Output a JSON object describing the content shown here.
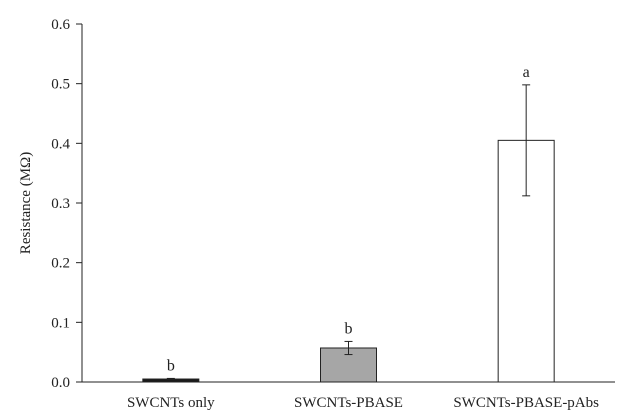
{
  "chart_data": {
    "type": "bar",
    "title": "",
    "xlabel": "",
    "ylabel": "Resistance (MΩ)",
    "ylim": [
      0,
      0.6
    ],
    "yticks": [
      "0.0",
      "0.1",
      "0.2",
      "0.3",
      "0.4",
      "0.5",
      "0.6"
    ],
    "grid": false,
    "legend": "none",
    "categories": [
      "SWCNTs only",
      "SWCNTs-PBASE",
      "SWCNTs-PBASE-pAbs"
    ],
    "values": [
      0.005,
      0.057,
      0.405
    ],
    "errors": [
      0.001,
      0.011,
      0.093
    ],
    "significance": [
      "b",
      "b",
      "a"
    ],
    "bar_colors": [
      "#1a1a1a",
      "#a6a6a6",
      "#ffffff"
    ]
  }
}
